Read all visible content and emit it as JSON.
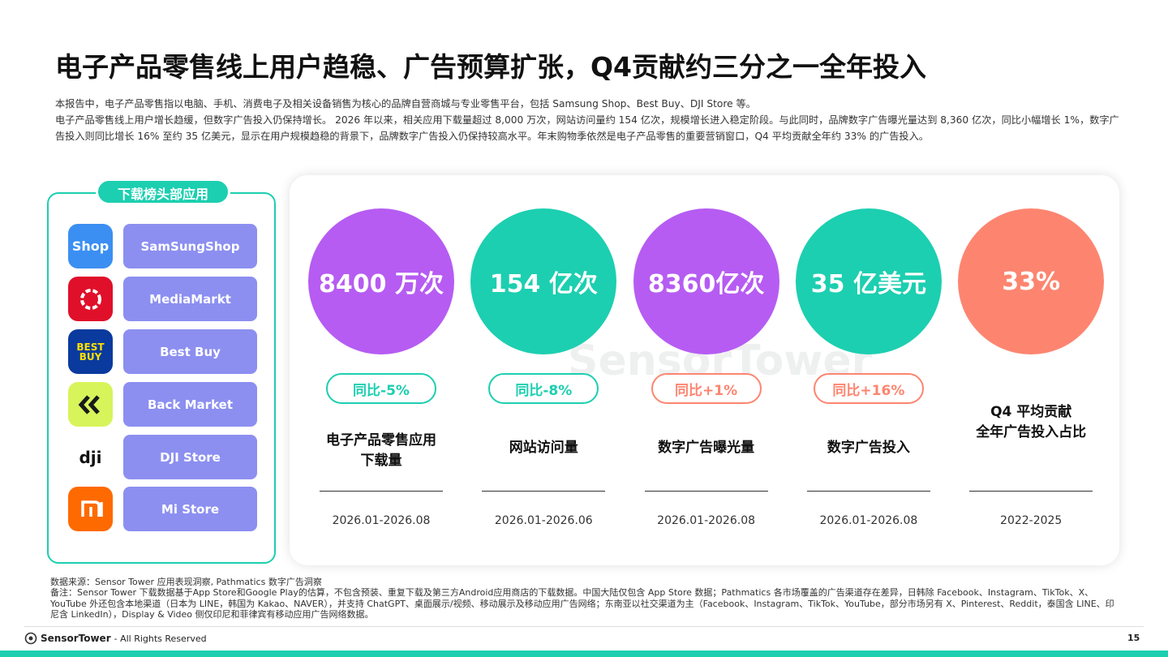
{
  "title": "电子产品零售线上用户趋稳、广告预算扩张，Q4贡献约三分之一全年投入",
  "intro": [
    "本报告中，电子产品零售指以电脑、手机、消费电子及相关设备销售为核心的品牌自营商城与专业零售平台，包括 Samsung Shop、Best Buy、DJI Store 等。",
    "电子产品零售线上用户增长趋缓，但数字广告投入仍保持增长。 2026 年以来，相关应用下载量超过 8,000 万次，网站访问量约 154 亿次，规模增长进入稳定阶段。与此同时，品牌数字广告曝光量达到 8,360 亿次，同比小幅增长 1%，数字广告投入则同比增长 16% 至约 35 亿美元，显示在用户规模趋稳的背景下，品牌数字广告投入仍保持较高水平。年末购物季依然是电子产品零售的重要营销窗口，Q4 平均贡献全年约 33% 的广告投入。"
  ],
  "apps": {
    "title": "下载榜头部应用",
    "items": [
      {
        "name": "SamSungShop",
        "icon_text": "Shop"
      },
      {
        "name": "MediaMarkt"
      },
      {
        "name": "Best Buy",
        "icon_text": "BEST BUY"
      },
      {
        "name": "Back Market"
      },
      {
        "name": "DJI Store",
        "icon_text": "dji"
      },
      {
        "name": "Mi Store"
      }
    ]
  },
  "watermark": "SensorTower",
  "metrics": [
    {
      "value": "8400 万次",
      "color": "#b65cf2",
      "change": "同比-5%",
      "change_color": "#1ccfb0",
      "label": [
        "电子产品零售应用",
        "下载量"
      ],
      "period": "2026.01-2026.08"
    },
    {
      "value": "154 亿次",
      "color": "#1ccfb0",
      "change": "同比-8%",
      "change_color": "#1ccfb0",
      "label": [
        "网站访问量"
      ],
      "period": "2026.01-2026.06"
    },
    {
      "value": "8360亿次",
      "color": "#b65cf2",
      "change": "同比+1%",
      "change_color": "#fd8570",
      "label": [
        "数字广告曝光量"
      ],
      "period": "2026.01-2026.08"
    },
    {
      "value": "35 亿美元",
      "color": "#1ccfb0",
      "change": "同比+16%",
      "change_color": "#fd8570",
      "label": [
        "数字广告投入"
      ],
      "period": "2026.01-2026.08"
    },
    {
      "value": "33%",
      "color": "#fd8570",
      "label": [
        "Q4 平均贡献",
        "全年广告投入占比"
      ],
      "period": "2022-2025"
    }
  ],
  "footer": {
    "source": "数据来源：Sensor Tower 应用表现洞察, Pathmatics 数字广告洞察",
    "note": "备注：Sensor Tower 下载数据基于App Store和Google Play的估算，不包含预装、重复下载及第三方Android应用商店的下载数据。中国大陆仅包含 App Store 数据；Pathmatics 各市场覆盖的广告渠道存在差异，日韩除 Facebook、Instagram、TikTok、X、YouTube 外还包含本地渠道（日本为 LINE，韩国为 Kakao、NAVER），并支持 ChatGPT、桌面展示/视频、移动展示及移动应用广告网络；东南亚以社交渠道为主（Facebook、Instagram、TikTok、YouTube，部分市场另有 X、Pinterest、Reddit，泰国含 LINE、印尼含 LinkedIn），Display & Video 侧仅印尼和菲律宾有移动应用广告网络数据。",
    "brand": "SensorTower",
    "rights": "- All Rights Reserved",
    "page": "15"
  }
}
